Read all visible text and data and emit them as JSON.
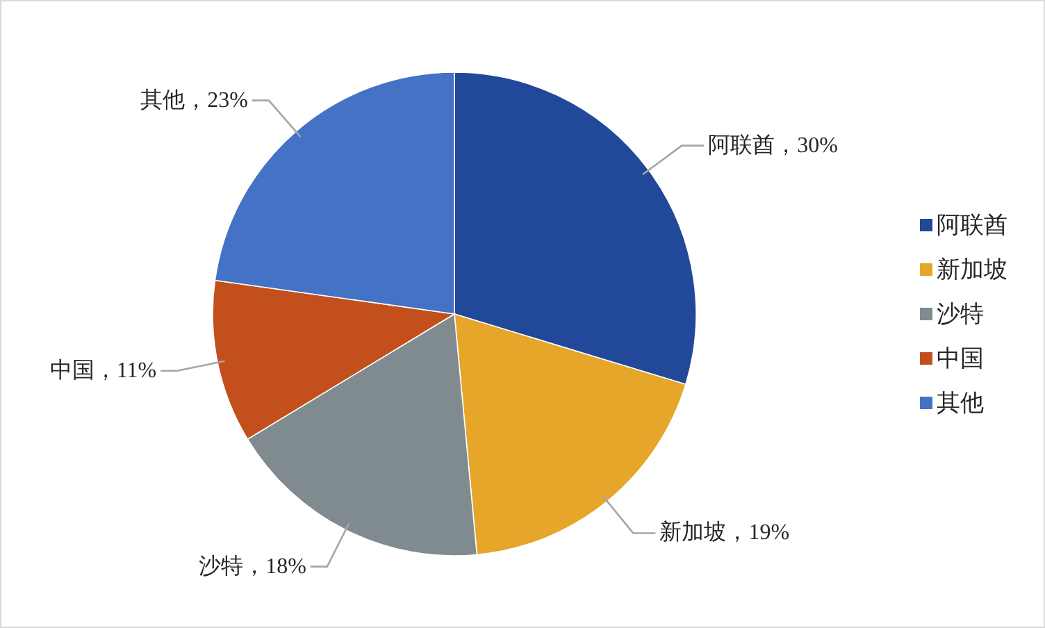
{
  "chart_data": {
    "type": "pie",
    "categories": [
      "阿联酋",
      "新加坡",
      "沙特",
      "中国",
      "其他"
    ],
    "values": [
      30,
      19,
      18,
      11,
      23
    ],
    "colors": [
      "#22489a",
      "#e5a62a",
      "#7f8b8f",
      "#c34f1d",
      "#4472c4"
    ],
    "value_labels": [
      "阿联酋，30%",
      "新加坡，19%",
      "沙特，18%",
      "中国，11%",
      "其他，23%"
    ],
    "legend": "right"
  }
}
